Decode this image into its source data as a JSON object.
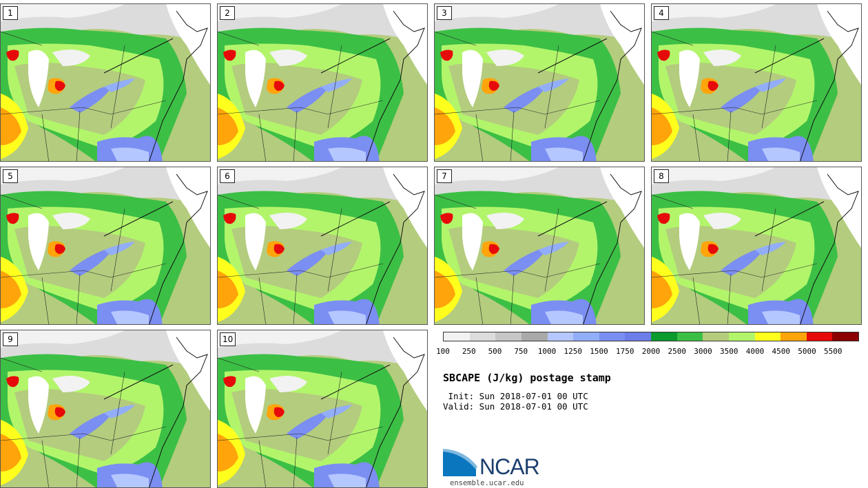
{
  "panels": [
    {
      "label": "1"
    },
    {
      "label": "2"
    },
    {
      "label": "3"
    },
    {
      "label": "4"
    },
    {
      "label": "5"
    },
    {
      "label": "6"
    },
    {
      "label": "7"
    },
    {
      "label": "8"
    },
    {
      "label": "9"
    },
    {
      "label": "10"
    }
  ],
  "colorbar": {
    "colors": [
      "#f2f2f2",
      "#dcdcdc",
      "#c6c6c6",
      "#a9a9a9",
      "#b5c7ff",
      "#93aef8",
      "#7b8ef2",
      "#6d7ee8",
      "#0b9a2e",
      "#3cbf45",
      "#b4cc7e",
      "#b2f56b",
      "#ffff1e",
      "#ffa40a",
      "#e60a0a",
      "#8b0000"
    ],
    "ticks": [
      "100",
      "250",
      "500",
      "750",
      "1000",
      "1250",
      "1500",
      "1750",
      "2000",
      "2500",
      "3000",
      "3500",
      "4000",
      "4500",
      "5000",
      "5500"
    ]
  },
  "title": "SBCAPE (J/kg) postage stamp",
  "init_line": " Init: Sun 2018-07-01 00 UTC",
  "valid_line": "Valid: Sun 2018-07-01 00 UTC",
  "logo": {
    "name": "ncar-logo",
    "text": "NCAR"
  },
  "url": "ensemble.ucar.edu"
}
